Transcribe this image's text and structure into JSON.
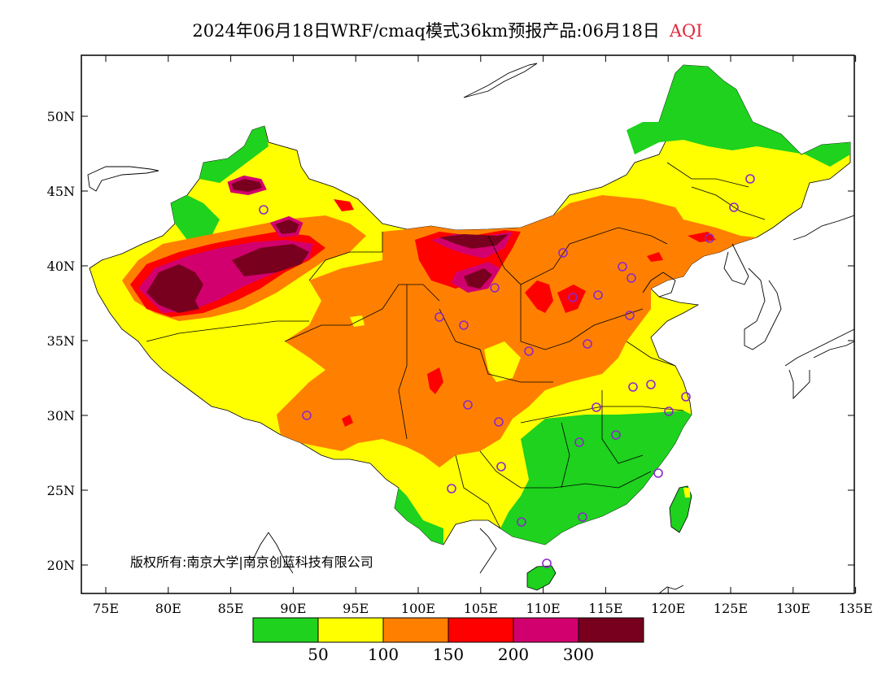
{
  "title": {
    "text": "2024年06月18日WRF/cmaq模式36km预报产品:06月18日",
    "variable": "AQI"
  },
  "copyright": "版权所有:南京大学|南京创蓝科技有限公司",
  "axes": {
    "lon_ticks": [
      "75E",
      "80E",
      "85E",
      "90E",
      "95E",
      "100E",
      "105E",
      "110E",
      "115E",
      "120E",
      "125E",
      "130E",
      "135E"
    ],
    "lat_ticks": [
      "50N",
      "45N",
      "40N",
      "35N",
      "30N",
      "25N",
      "20N"
    ]
  },
  "legend": {
    "colors": [
      "#1ed21e",
      "#ffff00",
      "#ff8000",
      "#ff0000",
      "#d2006e",
      "#78001e"
    ],
    "labels": [
      "50",
      "100",
      "150",
      "200",
      "300"
    ]
  },
  "colors": {
    "good": "#1ed21e",
    "moderate": "#ffff00",
    "unhealthy_sensitive": "#ff8000",
    "unhealthy": "#ff0000",
    "very_unhealthy": "#d2006e",
    "hazardous": "#78001e",
    "title_accent": "#e0283c",
    "city_marker": "#8c28c8"
  }
}
